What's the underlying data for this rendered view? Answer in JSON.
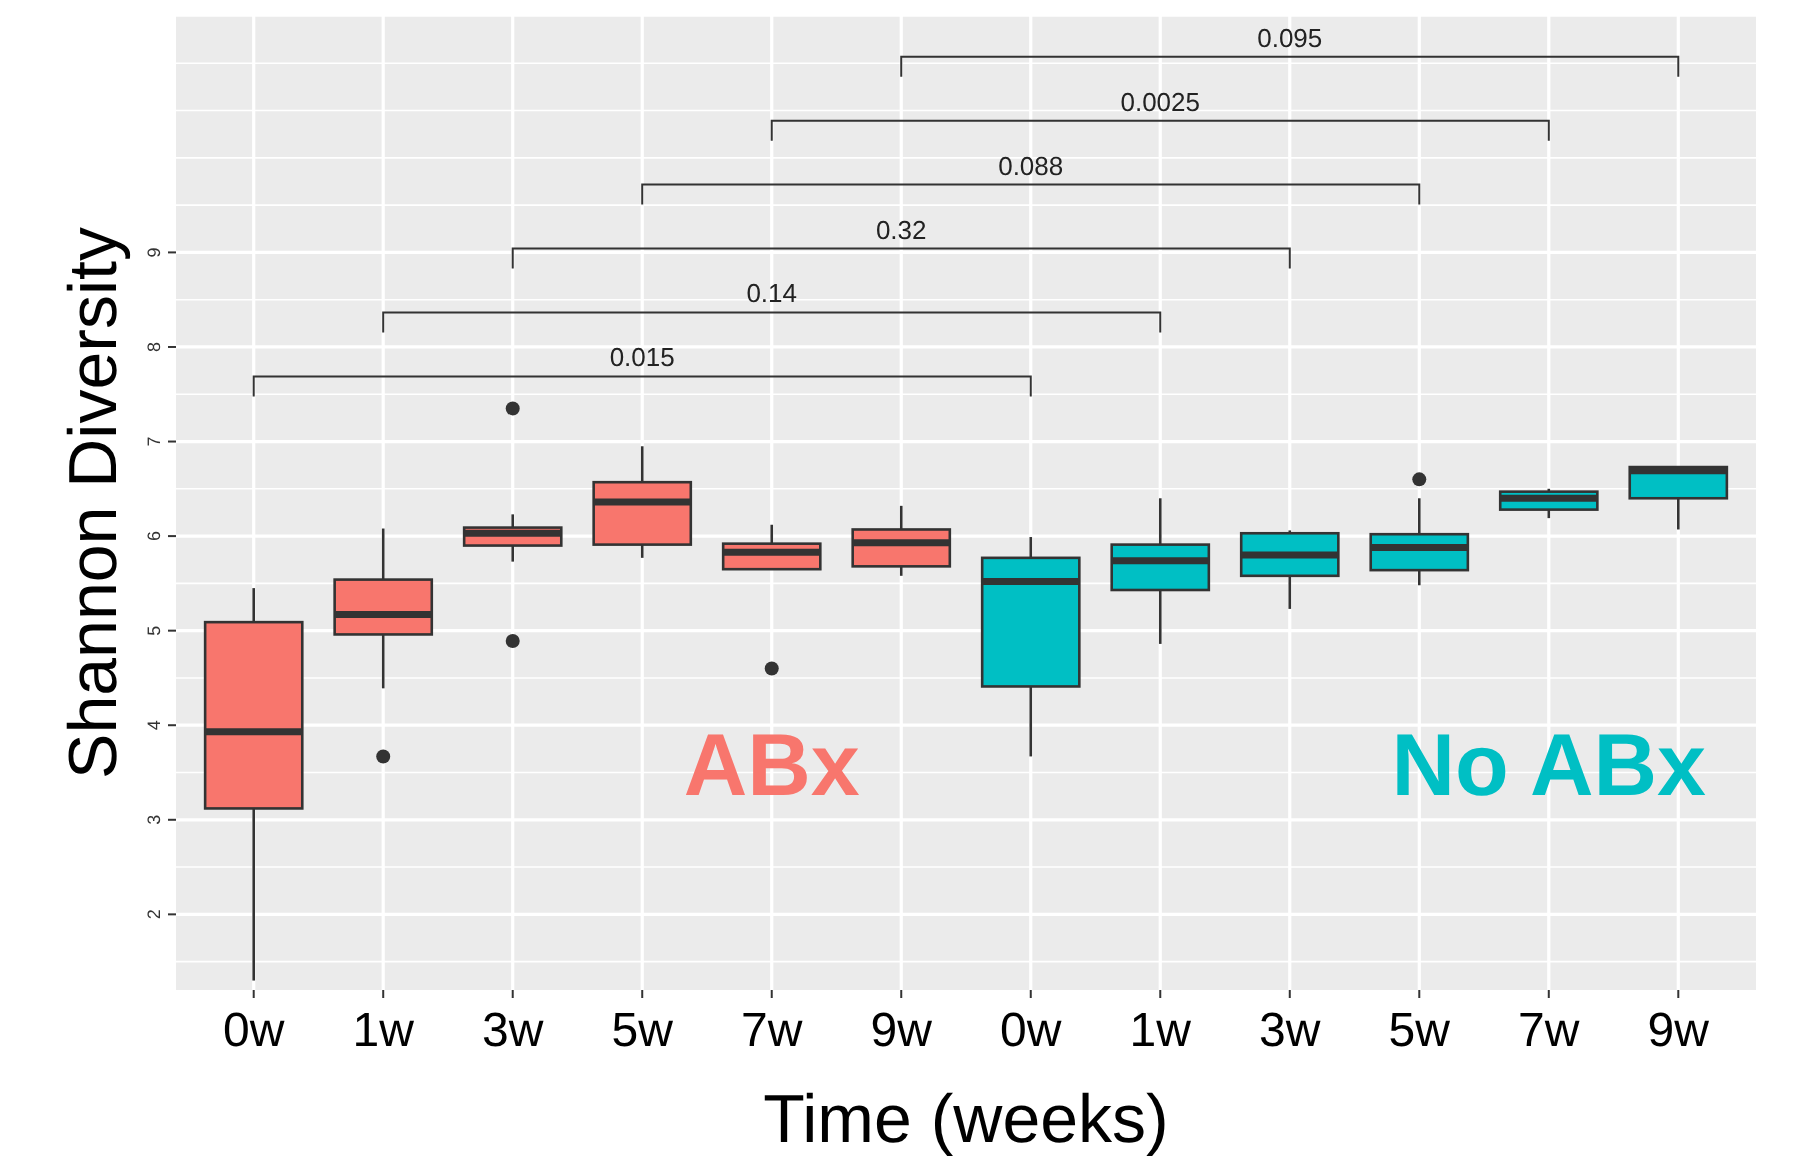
{
  "chart_data": {
    "type": "box",
    "xlabel": "Time (weeks)",
    "ylabel": "Shannon Diversity",
    "categories": [
      "0w",
      "1w",
      "3w",
      "5w",
      "7w",
      "9w",
      "0w",
      "1w",
      "3w",
      "5w",
      "7w",
      "9w"
    ],
    "ylim": [
      1.2,
      11.5
    ],
    "yticks": [
      2,
      3,
      4,
      5,
      6,
      7,
      8,
      9
    ],
    "grid": true,
    "series": [
      {
        "name": "ABx",
        "color": "#f8766d",
        "boxes": [
          {
            "low": 1.3,
            "q1": 3.12,
            "median": 3.93,
            "q3": 5.09,
            "high": 5.45
          },
          {
            "low": 4.39,
            "q1": 4.96,
            "median": 5.17,
            "q3": 5.54,
            "high": 6.08,
            "outliers": [
              3.67
            ]
          },
          {
            "low": 5.73,
            "q1": 5.9,
            "median": 6.03,
            "q3": 6.09,
            "high": 6.23,
            "outliers": [
              7.35,
              4.89
            ]
          },
          {
            "low": 5.77,
            "q1": 5.91,
            "median": 6.36,
            "q3": 6.57,
            "high": 6.95
          },
          {
            "low": 5.65,
            "q1": 5.65,
            "median": 5.83,
            "q3": 5.92,
            "high": 6.12,
            "outliers": [
              4.6
            ]
          },
          {
            "low": 5.58,
            "q1": 5.68,
            "median": 5.93,
            "q3": 6.07,
            "high": 6.32
          },
          null,
          null,
          null,
          null,
          null,
          null
        ]
      },
      {
        "name": "No ABx",
        "color": "#00bfc4",
        "boxes": [
          null,
          null,
          null,
          null,
          null,
          null,
          {
            "low": 3.67,
            "q1": 4.41,
            "median": 5.52,
            "q3": 5.77,
            "high": 5.99
          },
          {
            "low": 4.86,
            "q1": 5.43,
            "median": 5.74,
            "q3": 5.91,
            "high": 6.4
          },
          {
            "low": 5.23,
            "q1": 5.58,
            "median": 5.8,
            "q3": 6.03,
            "high": 6.06
          },
          {
            "low": 5.48,
            "q1": 5.64,
            "median": 5.88,
            "q3": 6.02,
            "high": 6.4,
            "outliers": [
              6.6
            ]
          },
          {
            "low": 6.19,
            "q1": 6.28,
            "median": 6.4,
            "q3": 6.47,
            "high": 6.5
          },
          {
            "low": 6.07,
            "q1": 6.4,
            "median": 6.69,
            "q3": 6.73,
            "high": 6.73
          }
        ]
      }
    ],
    "annotations": [
      "0.015",
      "0.14",
      "0.32",
      "0.088",
      "0.0025",
      "0.095"
    ]
  }
}
